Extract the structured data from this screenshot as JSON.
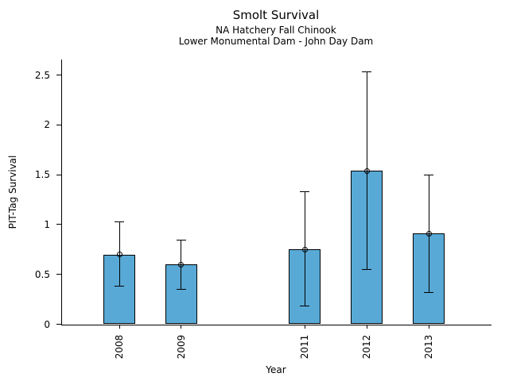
{
  "chart_data": {
    "type": "bar",
    "title": "Smolt Survival",
    "subtitle": [
      "NA Hatchery Fall Chinook",
      "Lower Monumental Dam - John Day Dam"
    ],
    "xlabel": "Year",
    "ylabel": "PIT-Tag Survival",
    "categories": [
      "2008",
      "2009",
      "2011",
      "2012",
      "2013"
    ],
    "x_numeric": [
      2008,
      2009,
      2011,
      2012,
      2013
    ],
    "values": [
      0.7,
      0.6,
      0.75,
      1.54,
      0.91
    ],
    "error_low": [
      0.38,
      0.35,
      0.18,
      0.55,
      0.32
    ],
    "error_high": [
      1.03,
      0.84,
      1.33,
      2.53,
      1.5
    ],
    "yticks": [
      0,
      0.5,
      1,
      1.5,
      2,
      2.5
    ],
    "ylim": [
      0,
      2.65
    ],
    "grid": false,
    "legend": null,
    "bar_color": "#58a9d6",
    "bar_edge_color": "#000000",
    "errorbar_color": "#000000",
    "marker": "open-circle"
  }
}
